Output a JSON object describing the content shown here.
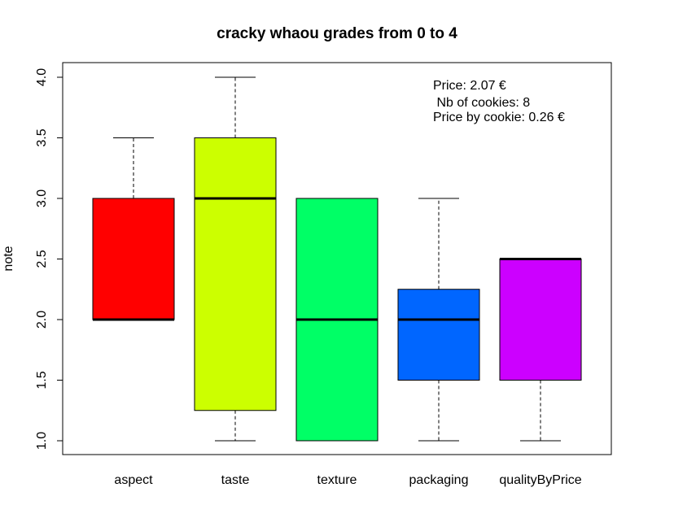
{
  "chart_data": {
    "type": "boxplot",
    "title": "cracky whaou grades from 0 to 4",
    "xlabel": "",
    "ylabel": "note",
    "ylim": [
      1.0,
      4.0
    ],
    "yticks": [
      "1.0",
      "1.5",
      "2.0",
      "2.5",
      "3.0",
      "3.5",
      "4.0"
    ],
    "grid": false,
    "categories": [
      "aspect",
      "taste",
      "texture",
      "packaging",
      "qualityByPrice"
    ],
    "boxes": [
      {
        "name": "aspect",
        "whisker_low": 2.0,
        "q1": 2.0,
        "median": 2.0,
        "q3": 3.0,
        "whisker_high": 3.5,
        "color": "#FF0000"
      },
      {
        "name": "taste",
        "whisker_low": 1.0,
        "q1": 1.25,
        "median": 3.0,
        "q3": 3.5,
        "whisker_high": 4.0,
        "color": "#CCFF00"
      },
      {
        "name": "texture",
        "whisker_low": 1.0,
        "q1": 1.0,
        "median": 2.0,
        "q3": 3.0,
        "whisker_high": 3.0,
        "color": "#00FF66"
      },
      {
        "name": "packaging",
        "whisker_low": 1.0,
        "q1": 1.5,
        "median": 2.0,
        "q3": 2.25,
        "whisker_high": 3.0,
        "color": "#0066FF"
      },
      {
        "name": "qualityByPrice",
        "whisker_low": 1.0,
        "q1": 1.5,
        "median": 2.5,
        "q3": 2.5,
        "whisker_high": 2.5,
        "color": "#CC00FF"
      }
    ],
    "annotations": [
      "Price: 2.07 €",
      " Nb of cookies: 8",
      "Price by cookie: 0.26 €"
    ],
    "annotation_placement": "top-right"
  }
}
